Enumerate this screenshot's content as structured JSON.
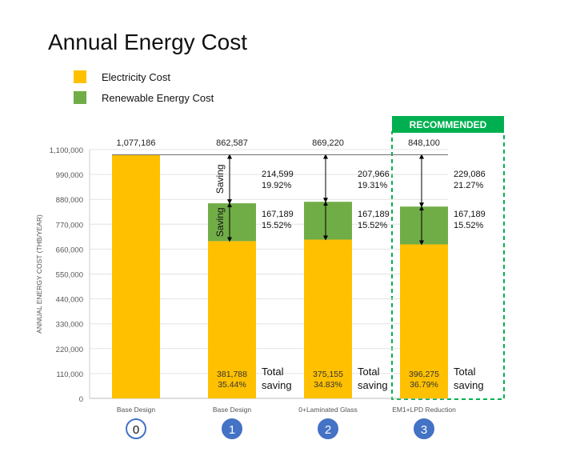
{
  "chart_data": {
    "type": "bar",
    "stacked": true,
    "title": "Annual Energy Cost",
    "ylabel": "ANNUAL ENERGY COST (THB/YEAR)",
    "ylim": [
      0,
      1100000
    ],
    "yticks": [
      0,
      110000,
      220000,
      330000,
      440000,
      550000,
      660000,
      770000,
      880000,
      990000,
      1100000
    ],
    "ytick_labels": [
      "0",
      "110,000",
      "220,000",
      "330,000",
      "440,000",
      "550,000",
      "660,000",
      "770,000",
      "880,000",
      "990,000",
      "1,100,000"
    ],
    "grid": true,
    "legend_placement": "top-left",
    "categories": [
      "Base Design",
      "Base Design",
      "0+Laminated Glass",
      "EM1+LPD Reduction"
    ],
    "scenario_numbers": [
      "0",
      "1",
      "2",
      "3"
    ],
    "series": [
      {
        "name": "Electricity Cost",
        "color": "#FFC000",
        "values": [
          1077186,
          695398,
          702031,
          680911
        ]
      },
      {
        "name": "Renewable Energy Cost",
        "color": "#70AD47",
        "values": [
          0,
          167189,
          167189,
          167189
        ]
      }
    ],
    "totals": [
      "1,077,186",
      "862,587",
      "869,220",
      "848,100"
    ],
    "baseline_value": 1077186,
    "saving_label": "Saving",
    "total_saving_label": [
      "Total",
      "saving"
    ],
    "savings": [
      null,
      {
        "electric": "214,599",
        "electric_pct": "19.92%",
        "renewable": "167,189",
        "renewable_pct": "15.52%",
        "total": "381,788",
        "total_pct": "35.44%"
      },
      {
        "electric": "207,966",
        "electric_pct": "19.31%",
        "renewable": "167,189",
        "renewable_pct": "15.52%",
        "total": "375,155",
        "total_pct": "34.83%"
      },
      {
        "electric": "229,086",
        "electric_pct": "21.27%",
        "renewable": "167,189",
        "renewable_pct": "15.52%",
        "total": "396,275",
        "total_pct": "36.79%"
      }
    ],
    "recommended_label": "RECOMMENDED",
    "recommended_index": 3,
    "recommended_color": "#00B050",
    "badge_color": "#4472C4"
  }
}
